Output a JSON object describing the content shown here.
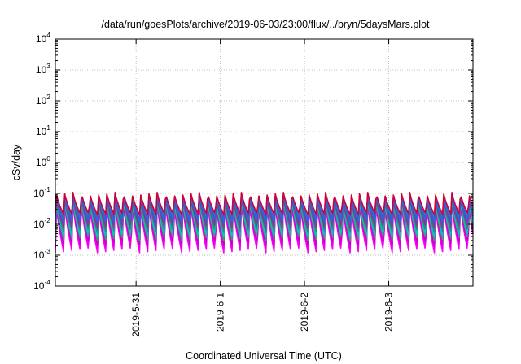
{
  "chart_data": {
    "type": "line",
    "title": "/data/run/goesPlots/archive/2019-06-03/23:00/flux/../bryn/5daysMars.plot",
    "xlabel": "Coordinated Universal Time (UTC)",
    "ylabel": "cSv/day",
    "yscale": "log",
    "ylim": [
      0.0001,
      10000
    ],
    "y_ticks": [
      {
        "base": "10",
        "exp": "4"
      },
      {
        "base": "10",
        "exp": "3"
      },
      {
        "base": "10",
        "exp": "2"
      },
      {
        "base": "10",
        "exp": "1"
      },
      {
        "base": "10",
        "exp": "0"
      },
      {
        "base": "10",
        "exp": "-1"
      },
      {
        "base": "10",
        "exp": "-2"
      },
      {
        "base": "10",
        "exp": "-3"
      },
      {
        "base": "10",
        "exp": "-4"
      }
    ],
    "xlim": [
      "2019-05-30T01:00",
      "2019-06-04T00:00"
    ],
    "x_ticks": [
      "2019-5-31",
      "2019-6-1",
      "2019-6-2",
      "2019-6-3"
    ],
    "grid": true,
    "pattern": {
      "period_hours": 2.4,
      "peak_phase": 0.08
    },
    "series": [
      {
        "color": "#ff00ff",
        "peak": 0.055,
        "trough": 0.0012
      },
      {
        "color": "#e800e8",
        "peak": 0.06,
        "trough": 0.0016
      },
      {
        "color": "#cc00cc",
        "peak": 0.065,
        "trough": 0.0021
      },
      {
        "color": "#3a9e78",
        "peak": 0.07,
        "trough": 0.003
      },
      {
        "color": "#00c8c8",
        "peak": 0.075,
        "trough": 0.004
      },
      {
        "color": "#2a8a8a",
        "peak": 0.08,
        "trough": 0.0055
      },
      {
        "color": "#8a3a8a",
        "peak": 0.085,
        "trough": 0.0075
      },
      {
        "color": "#5a4ab0",
        "peak": 0.09,
        "trough": 0.0095
      },
      {
        "color": "#3d5fd6",
        "peak": 0.095,
        "trough": 0.012
      },
      {
        "color": "#1e6be0",
        "peak": 0.1,
        "trough": 0.015
      },
      {
        "color": "#d0003a",
        "peak": 0.11,
        "trough": 0.02
      }
    ]
  }
}
